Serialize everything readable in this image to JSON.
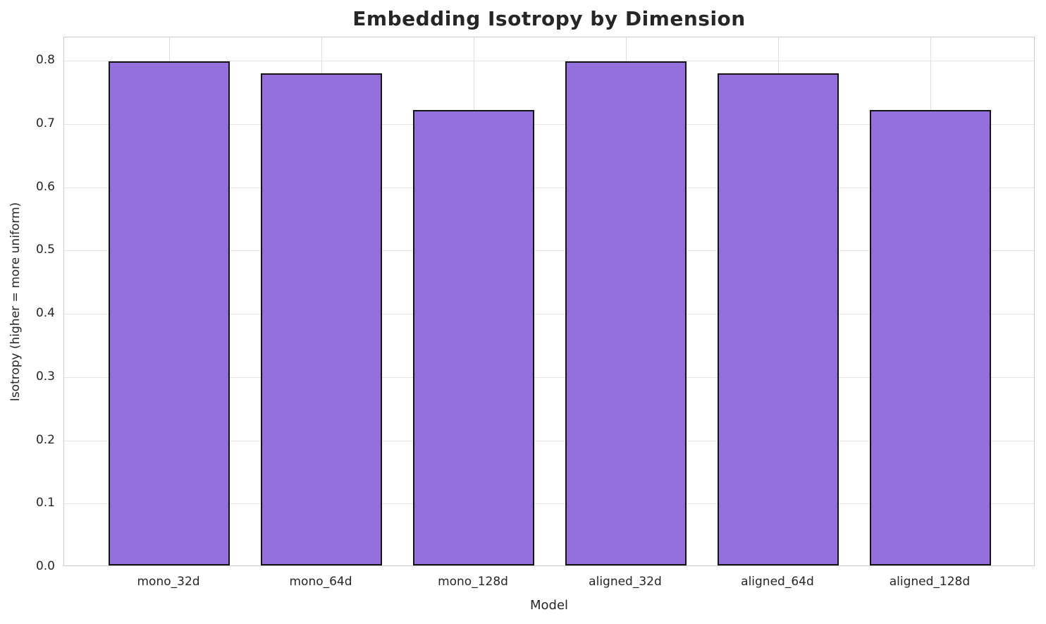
{
  "chart_data": {
    "type": "bar",
    "title": "Embedding Isotropy by Dimension",
    "xlabel": "Model",
    "ylabel": "Isotropy (higher = more uniform)",
    "categories": [
      "mono_32d",
      "mono_64d",
      "mono_128d",
      "aligned_32d",
      "aligned_64d",
      "aligned_128d"
    ],
    "values": [
      0.797,
      0.778,
      0.72,
      0.797,
      0.778,
      0.72
    ],
    "ylim": [
      0,
      0.8368
    ],
    "yticks": [
      0.0,
      0.1,
      0.2,
      0.3,
      0.4,
      0.5,
      0.6,
      0.7,
      0.8
    ],
    "ytick_labels": [
      "0.0",
      "0.1",
      "0.2",
      "0.3",
      "0.4",
      "0.5",
      "0.6",
      "0.7",
      "0.8"
    ],
    "grid": true,
    "legend": "none",
    "colors": {
      "bar_fill": "#9370db",
      "bar_edge": "#141414",
      "grid": "#e4e4e4",
      "spine": "#c9c9c9",
      "text": "#262626"
    }
  }
}
